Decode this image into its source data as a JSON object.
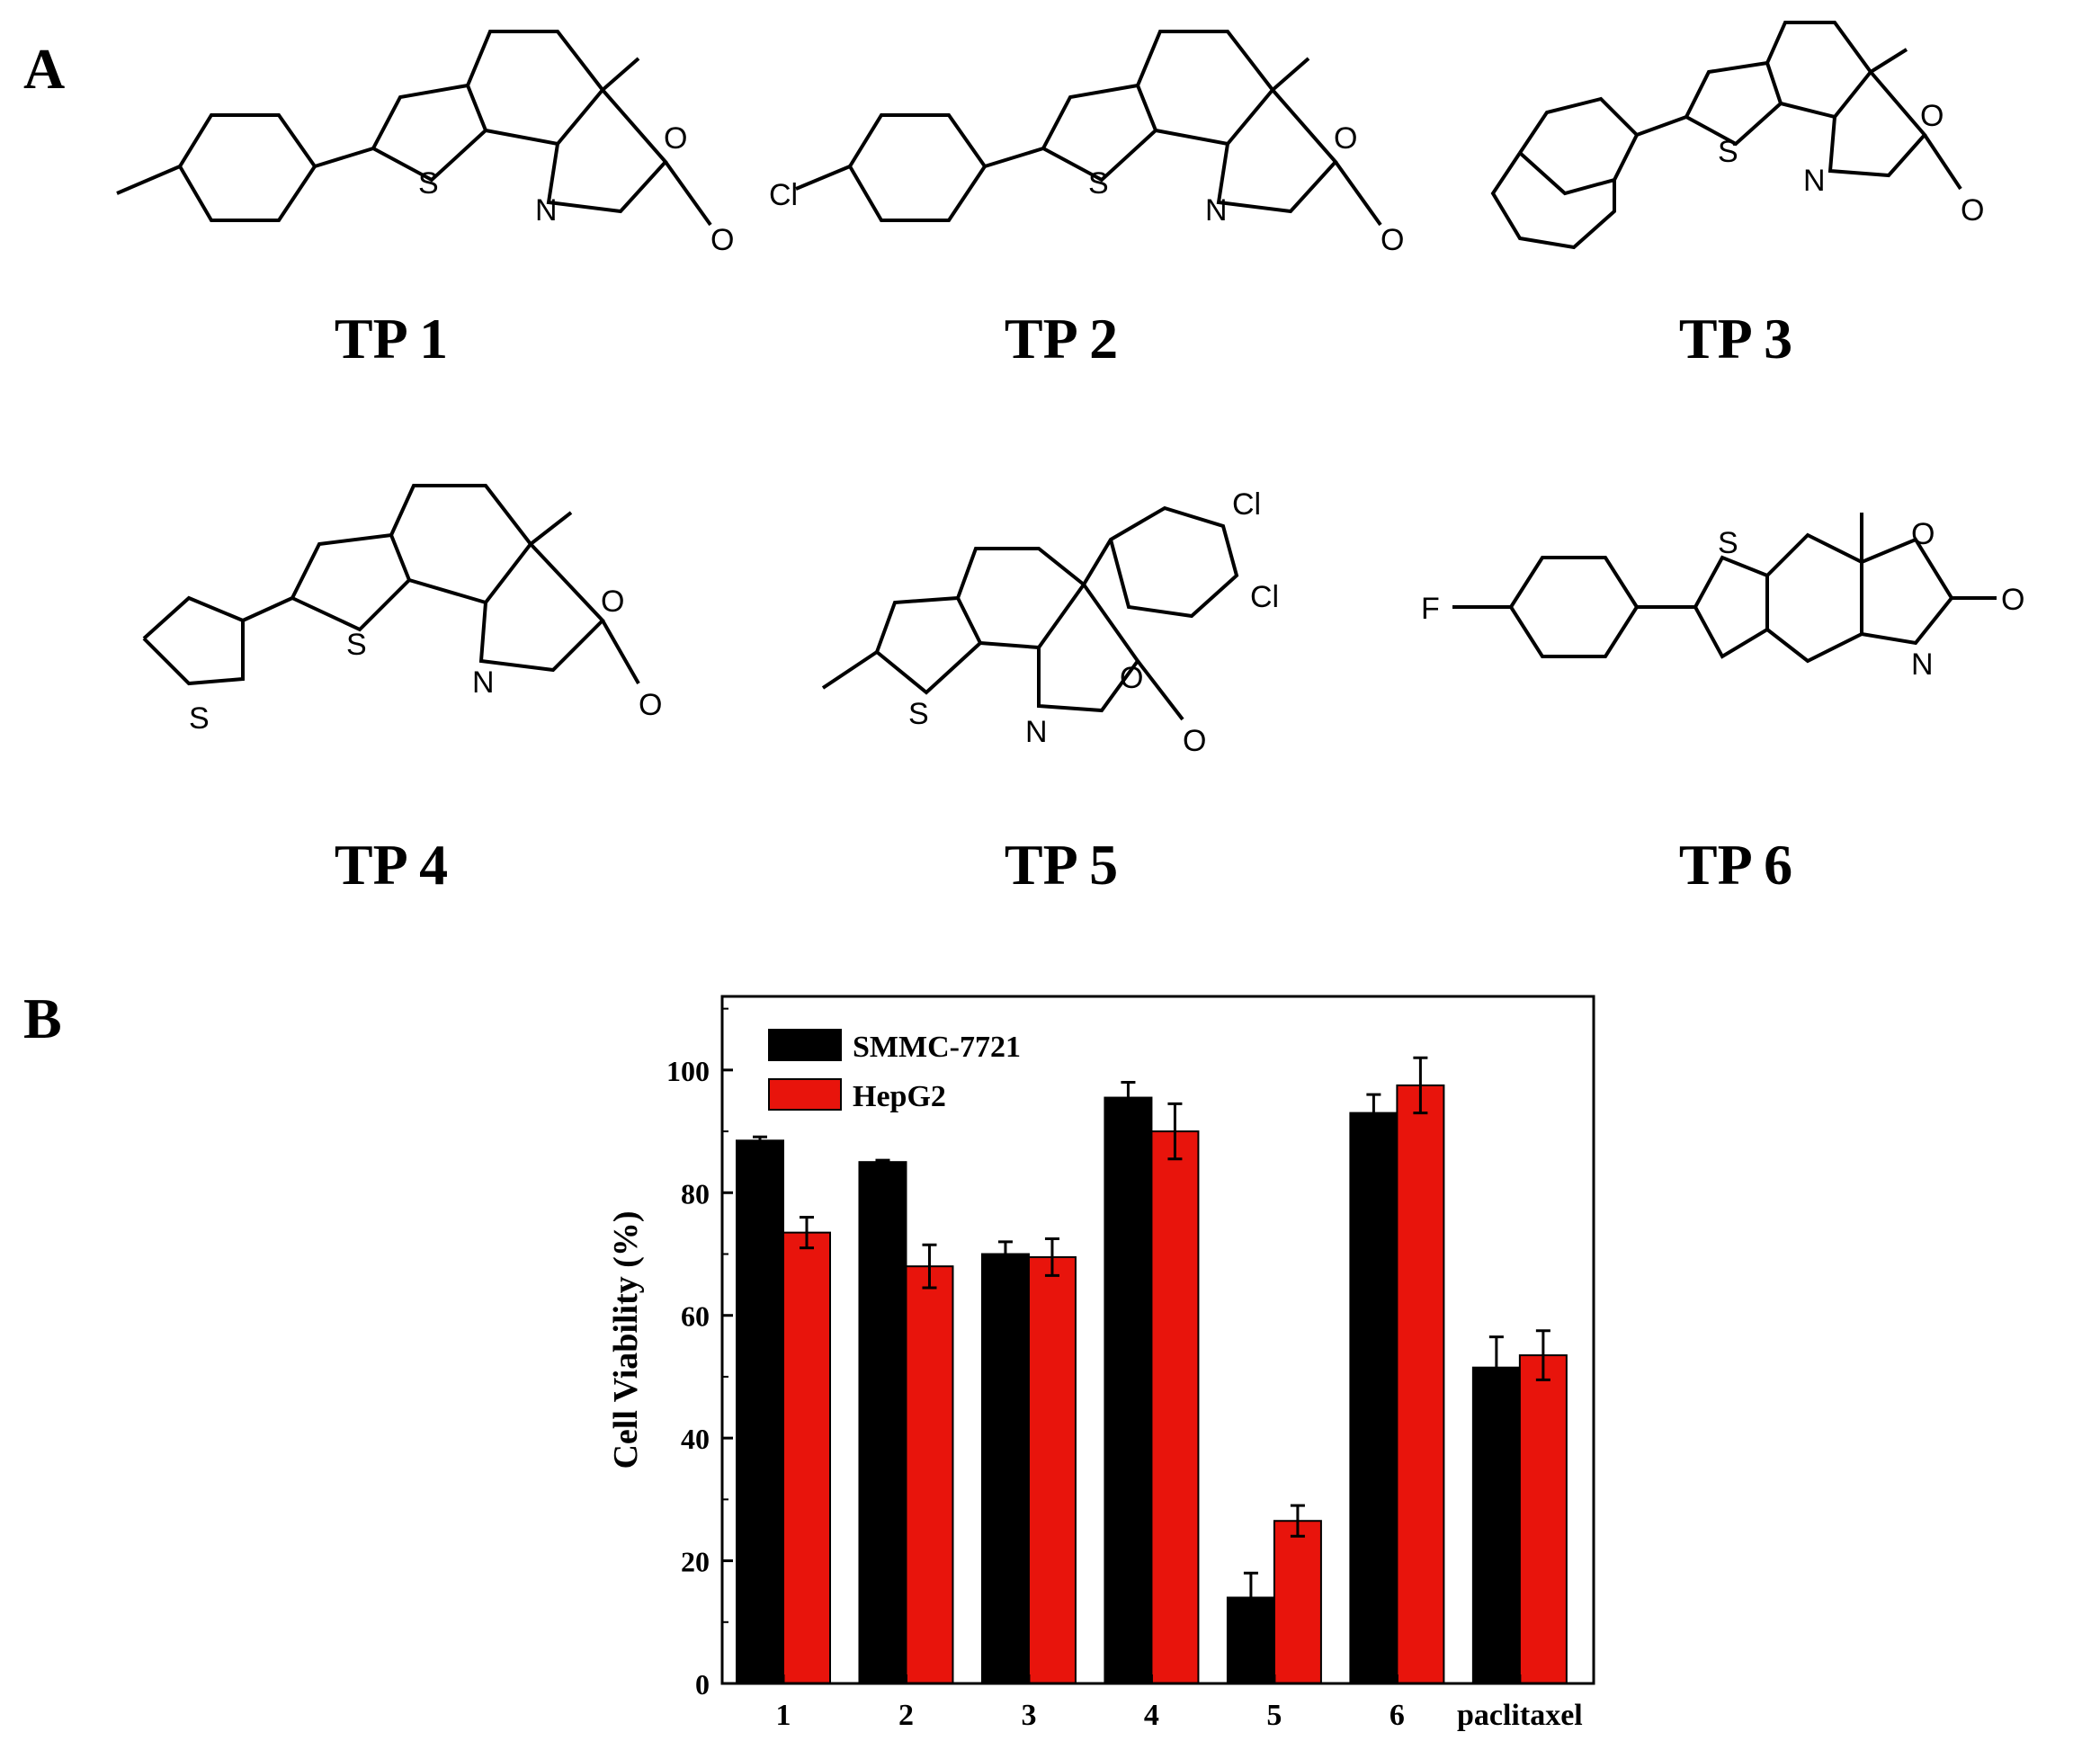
{
  "panels": {
    "a_label": "A",
    "b_label": "B"
  },
  "compounds": [
    {
      "name": "TP 1",
      "atoms": [
        "S",
        "N",
        "O",
        "O"
      ]
    },
    {
      "name": "TP 2",
      "atoms": [
        "Cl",
        "S",
        "N",
        "O",
        "O"
      ]
    },
    {
      "name": "TP 3",
      "atoms": [
        "S",
        "N",
        "O",
        "O"
      ]
    },
    {
      "name": "TP 4",
      "atoms": [
        "S",
        "S",
        "N",
        "O",
        "O"
      ]
    },
    {
      "name": "TP 5",
      "atoms": [
        "Cl",
        "Cl",
        "S",
        "N",
        "O",
        "O"
      ]
    },
    {
      "name": "TP 6",
      "atoms": [
        "F",
        "S",
        "N",
        "O",
        "O"
      ]
    }
  ],
  "colors": {
    "smmc": "#000000",
    "hepg2": "#e8140c",
    "axis": "#000000"
  },
  "chart_data": {
    "type": "bar",
    "categories": [
      "1",
      "2",
      "3",
      "4",
      "5",
      "6",
      "paclitaxel"
    ],
    "series": [
      {
        "name": "SMMC-7721",
        "values": [
          88.5,
          85,
          70,
          95.5,
          14,
          93,
          51.5
        ],
        "errors": [
          0.6,
          0.3,
          2,
          2.5,
          4,
          3,
          5
        ]
      },
      {
        "name": "HepG2",
        "values": [
          73.5,
          68,
          69.5,
          90,
          26.5,
          97.5,
          53.5
        ],
        "errors": [
          2.5,
          3.5,
          3,
          4.5,
          2.5,
          4.5,
          4
        ]
      }
    ],
    "ylabel": "Cell Viability (%)",
    "xlabel": "",
    "ylim": [
      0,
      112
    ],
    "yticks": [
      0,
      20,
      40,
      60,
      80,
      100
    ],
    "legend_position": "top-left",
    "grid": false
  }
}
